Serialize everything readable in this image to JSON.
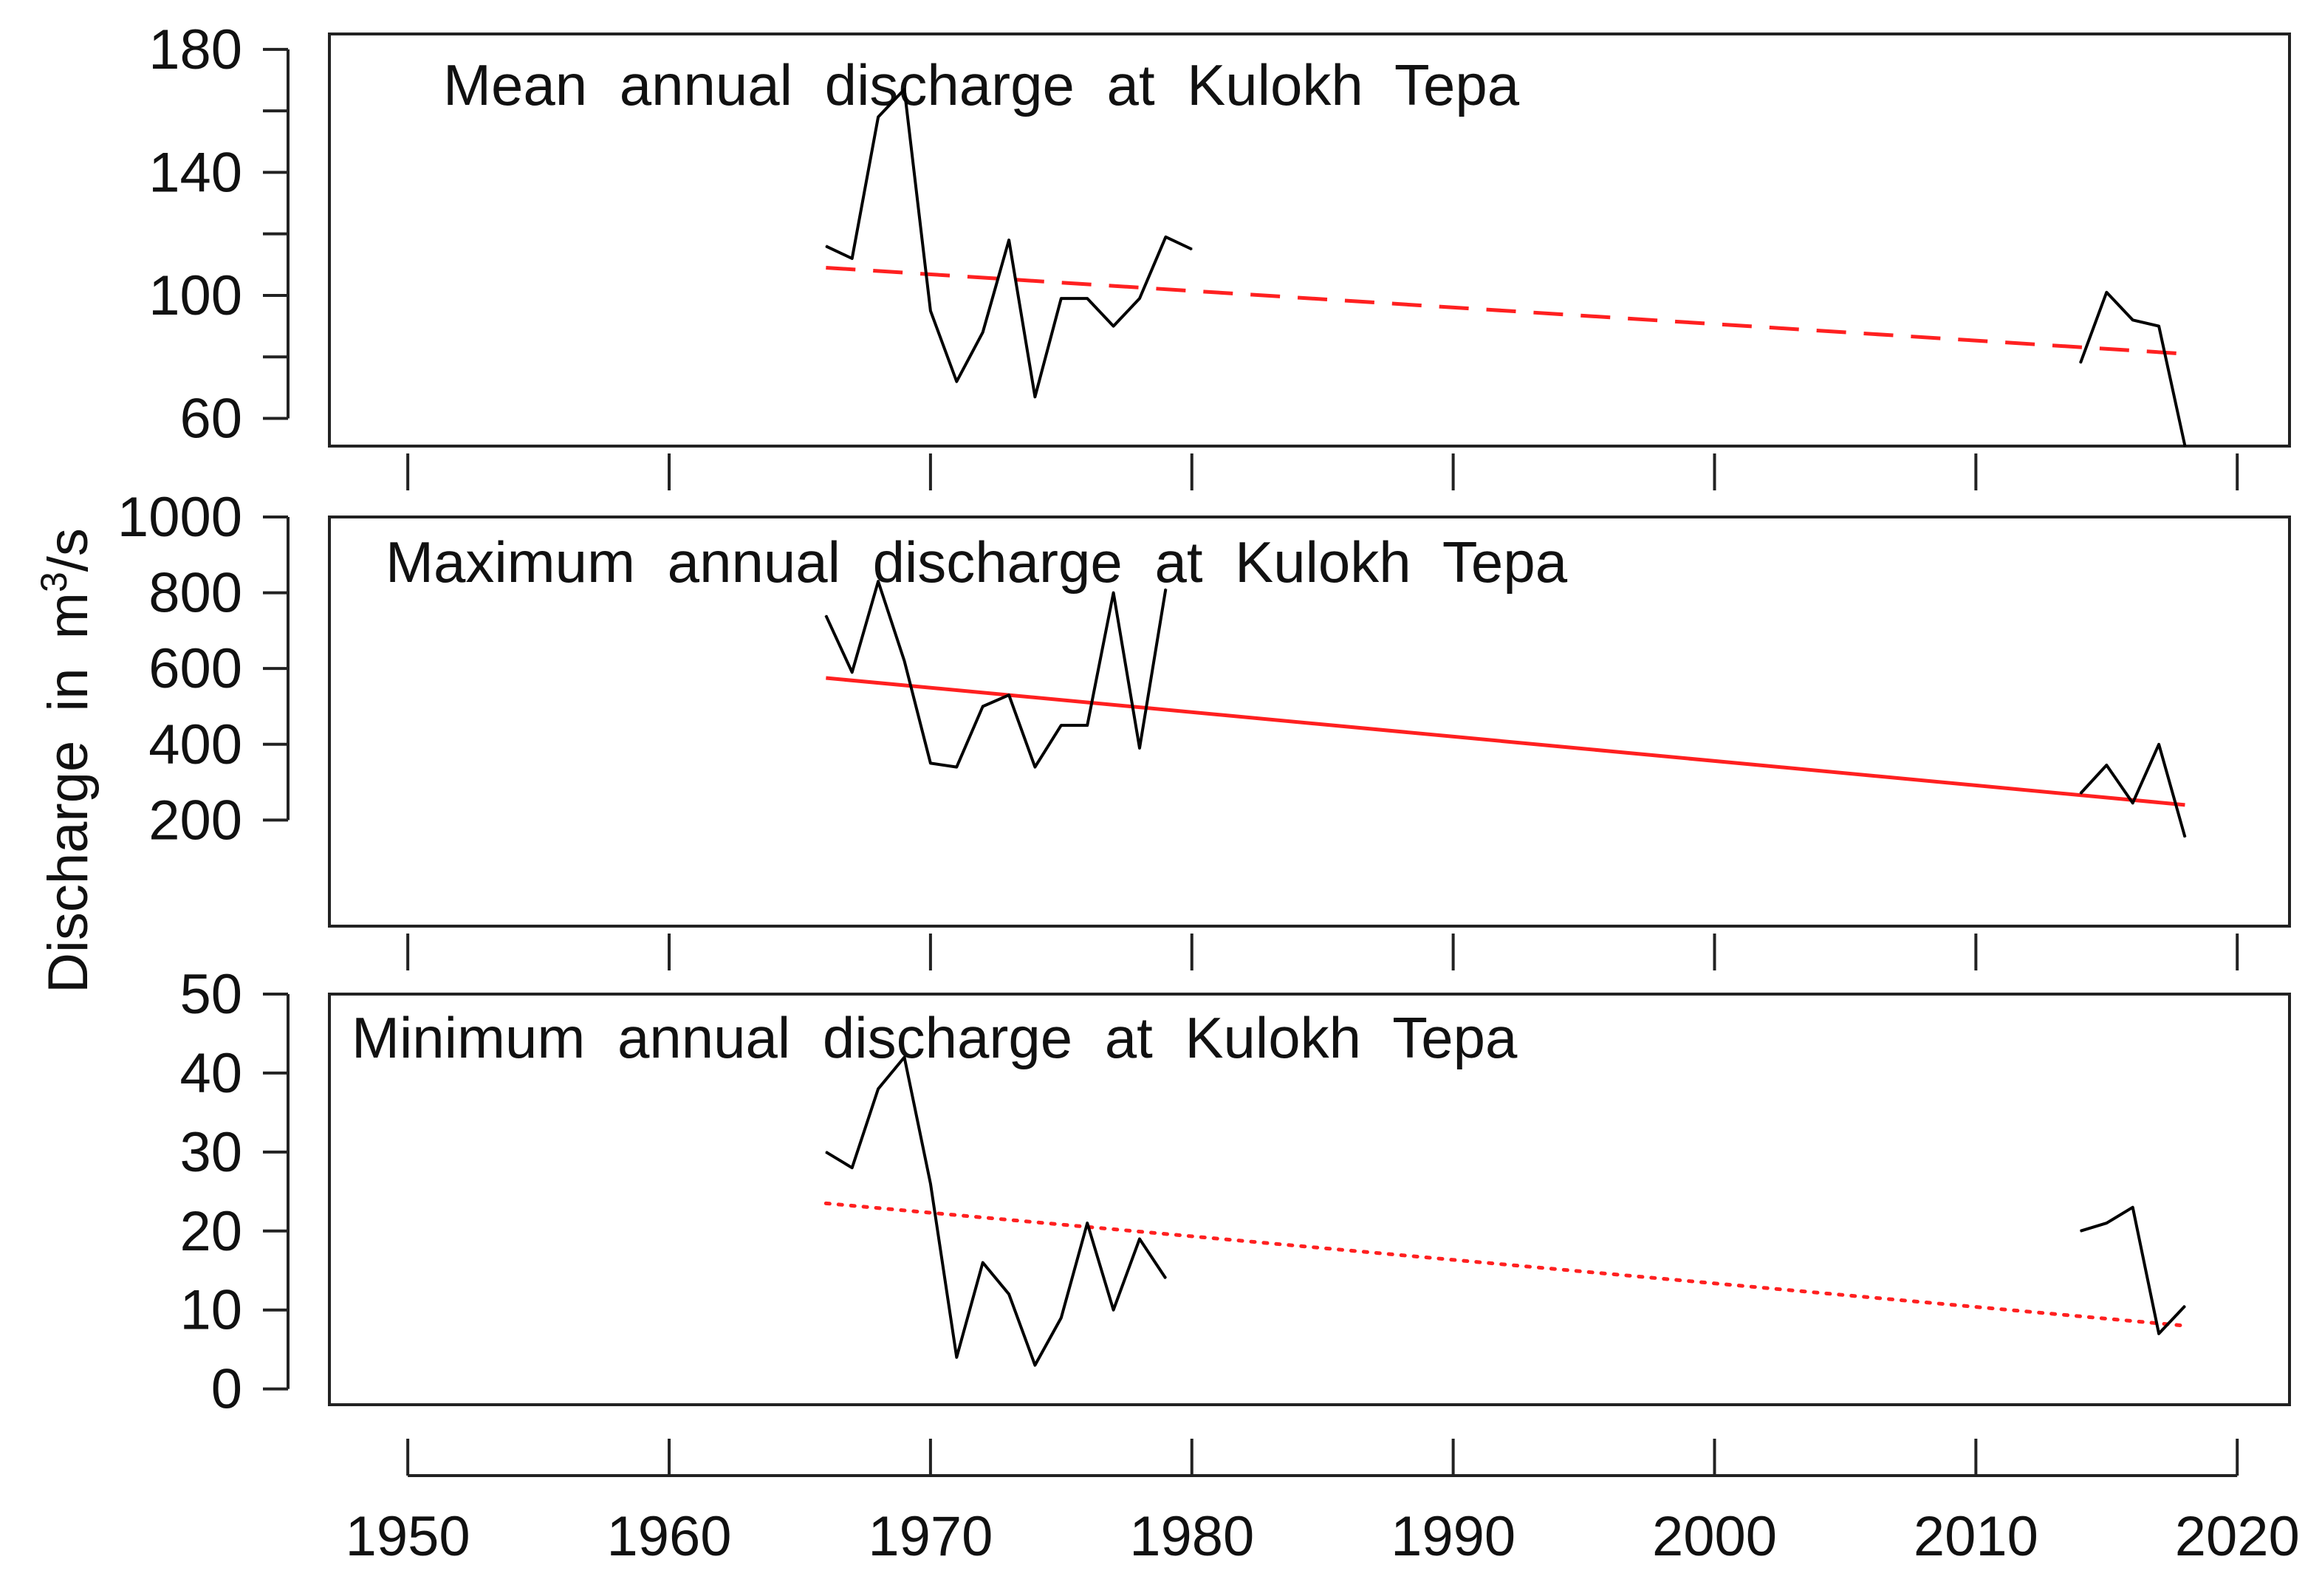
{
  "chart_data": {
    "type": "line",
    "ylabel": "Discharge in",
    "ylabel_unit_base": "m",
    "ylabel_unit_sup": "3",
    "ylabel_unit_rest": "/s",
    "xlim": [
      1947,
      2022
    ],
    "xticks": [
      1950,
      1960,
      1970,
      1980,
      1990,
      2000,
      2010,
      2020
    ],
    "xtick_labels": [
      "1950",
      "1960",
      "1970",
      "1980",
      "1990",
      "2000",
      "2010",
      "2020"
    ],
    "panels": [
      {
        "title": "Mean annual discharge at Kulokh Tepa",
        "ylim": [
          51,
          185
        ],
        "yticks": [
          60,
          80,
          100,
          120,
          140,
          160,
          180
        ],
        "ytick_labels": [
          "60",
          "",
          "100",
          "",
          "140",
          "",
          "180"
        ],
        "series": [
          {
            "name": "Observed mean annual discharge",
            "color": "#000000",
            "segments": [
              {
                "x": [
                  1966,
                  1967,
                  1968,
                  1969,
                  1970,
                  1971,
                  1972,
                  1973,
                  1974,
                  1975,
                  1976,
                  1977,
                  1978,
                  1979,
                  1980
                ],
                "y": [
                  116,
                  112,
                  158,
                  167,
                  95,
                  72,
                  88,
                  118,
                  67,
                  99,
                  99,
                  90,
                  99,
                  119,
                  115
                ]
              },
              {
                "x": [
                  2014,
                  2015,
                  2016,
                  2017,
                  2018
                ],
                "y": [
                  78,
                  101,
                  92,
                  90,
                  51
                ]
              }
            ]
          }
        ],
        "trend": {
          "name": "Linear trend",
          "color": "#ff2020",
          "style": "dashed",
          "x": [
            1966,
            2018
          ],
          "y": [
            109,
            81
          ]
        }
      },
      {
        "title": "Maximum annual discharge at Kulokh Tepa",
        "ylim": [
          -80,
          1000
        ],
        "yticks": [
          200,
          400,
          600,
          800,
          1000
        ],
        "ytick_labels": [
          "200",
          "400",
          "600",
          "800",
          "1000"
        ],
        "series": [
          {
            "name": "Observed maximum annual discharge",
            "color": "#000000",
            "segments": [
              {
                "x": [
                  1966,
                  1967,
                  1968,
                  1969,
                  1970,
                  1971,
                  1972,
                  1973,
                  1974,
                  1975,
                  1976,
                  1977,
                  1978,
                  1979
                ],
                "y": [
                  740,
                  590,
                  830,
                  620,
                  350,
                  340,
                  500,
                  530,
                  340,
                  450,
                  450,
                  800,
                  390,
                  810
                ]
              },
              {
                "x": [
                  2014,
                  2015,
                  2016,
                  2017,
                  2018
                ],
                "y": [
                  270,
                  345,
                  245,
                  400,
                  155
                ]
              }
            ]
          }
        ],
        "trend": {
          "name": "Linear trend",
          "color": "#ff2020",
          "style": "solid",
          "x": [
            1966,
            2018
          ],
          "y": [
            575,
            240
          ]
        }
      },
      {
        "title": "Minimum annual discharge at Kulokh Tepa",
        "ylim": [
          -2,
          50
        ],
        "yticks": [
          0,
          10,
          20,
          30,
          40,
          50
        ],
        "ytick_labels": [
          "0",
          "10",
          "20",
          "30",
          "40",
          "50"
        ],
        "series": [
          {
            "name": "Observed minimum annual discharge",
            "color": "#000000",
            "segments": [
              {
                "x": [
                  1966,
                  1967,
                  1968,
                  1969,
                  1970,
                  1971,
                  1972,
                  1973,
                  1974,
                  1975,
                  1976,
                  1977,
                  1978,
                  1979
                ],
                "y": [
                  30,
                  28,
                  38,
                  42,
                  26,
                  4,
                  16,
                  12,
                  3,
                  9,
                  21,
                  10,
                  19,
                  14
                ]
              },
              {
                "x": [
                  2014,
                  2015,
                  2016,
                  2017,
                  2018
                ],
                "y": [
                  20,
                  21,
                  23,
                  7,
                  10.5
                ]
              }
            ]
          }
        ],
        "trend": {
          "name": "Linear trend",
          "color": "#ff2020",
          "style": "dotted",
          "x": [
            1966,
            2018
          ],
          "y": [
            23.5,
            8
          ]
        }
      }
    ]
  }
}
